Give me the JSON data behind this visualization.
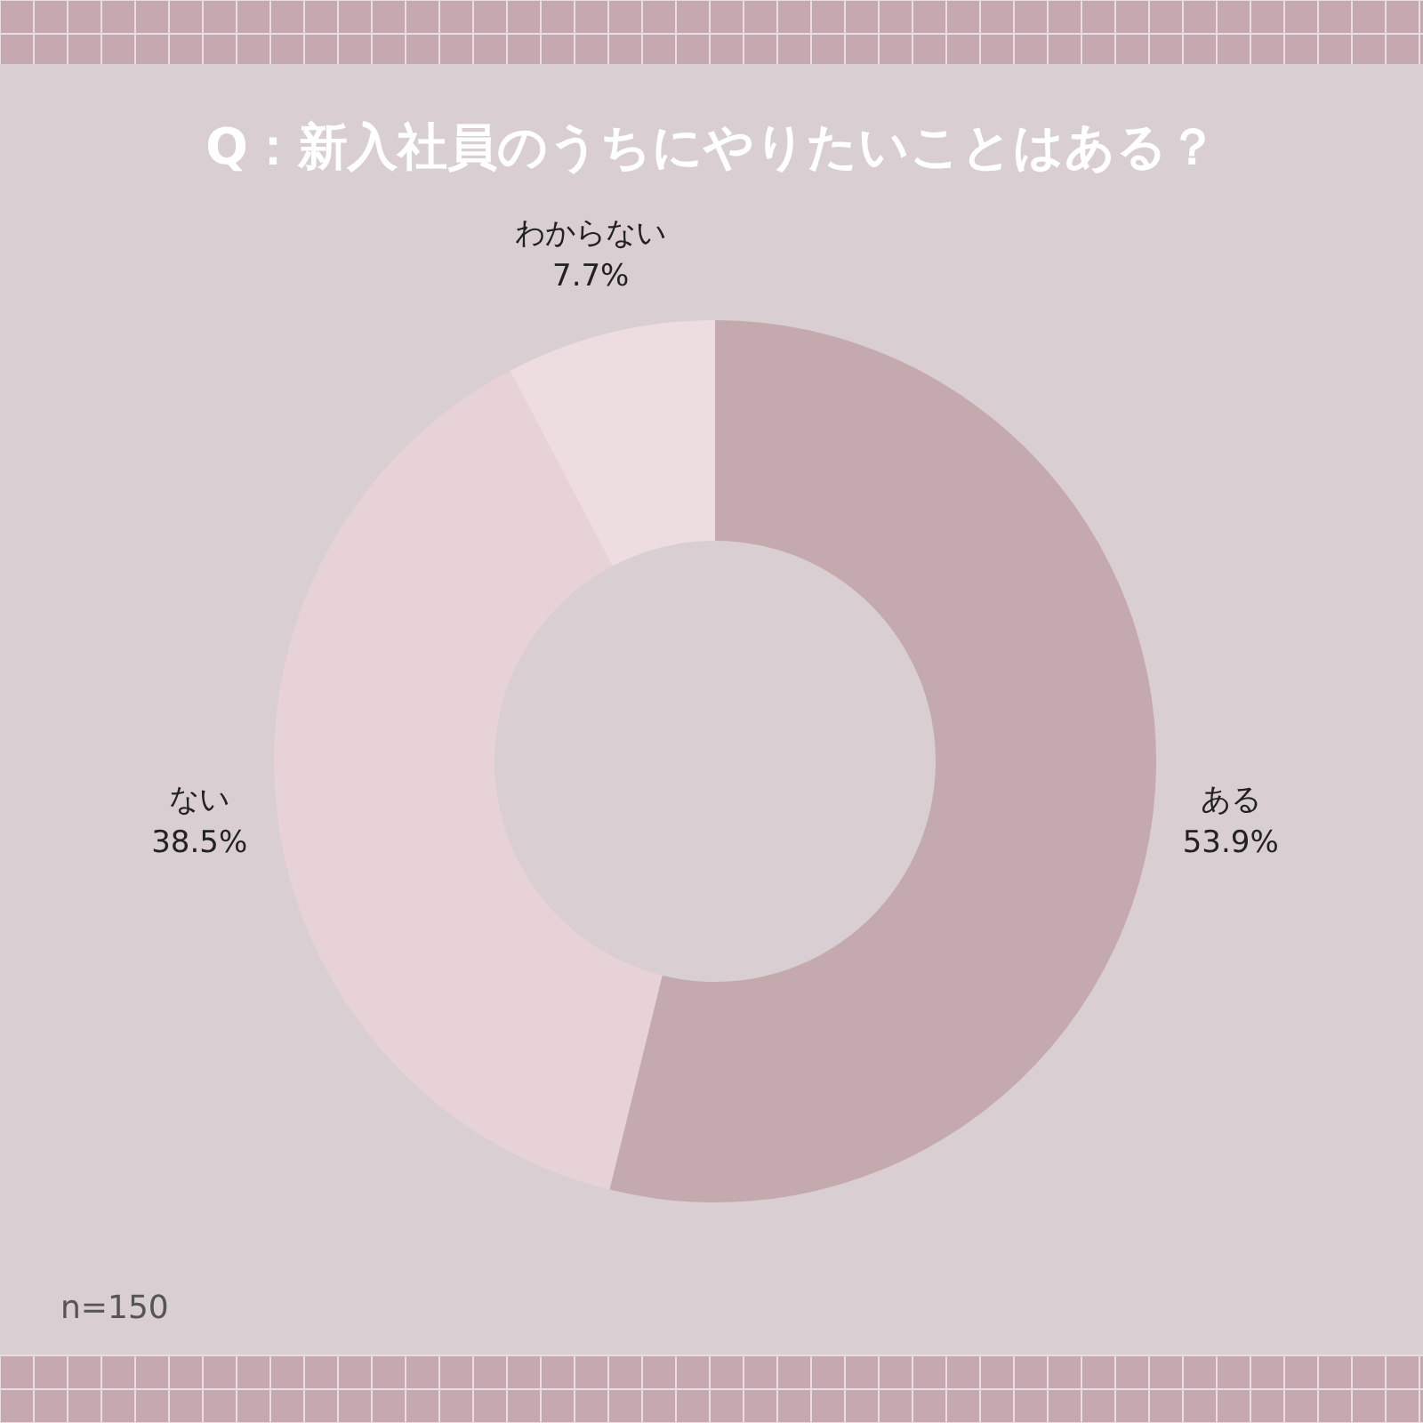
{
  "chart_data": {
    "type": "donut",
    "title": "Q：新入社員のうちにやりたいことはある？",
    "categories": [
      "ある",
      "ない",
      "わからない"
    ],
    "values": [
      53.9,
      38.5,
      7.7
    ],
    "colors": [
      "#c4a9ae",
      "#e6d2d7",
      "#eddde0"
    ],
    "value_labels": [
      "53.9%",
      "38.5%",
      "7.7%"
    ],
    "annotations": [
      "n=150"
    ]
  }
}
